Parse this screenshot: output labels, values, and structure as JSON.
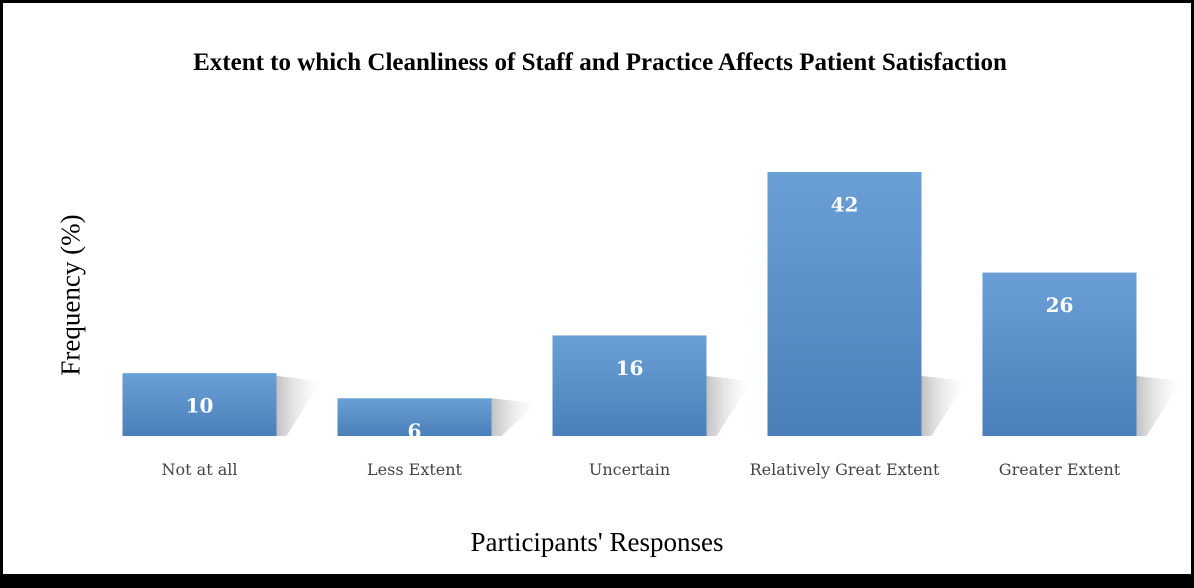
{
  "chart_data": {
    "type": "bar",
    "title": "Extent to which Cleanliness of Staff and Practice Affects Patient Satisfaction",
    "x_label": "Participants' Responses",
    "y_label": "Frequency (%)",
    "categories": [
      "Not at all",
      "Less Extent",
      "Uncertain",
      "Relatively Great Extent",
      "Greater Extent"
    ],
    "values": [
      10,
      6,
      16,
      42,
      26
    ],
    "color": "#5b8fc9"
  }
}
